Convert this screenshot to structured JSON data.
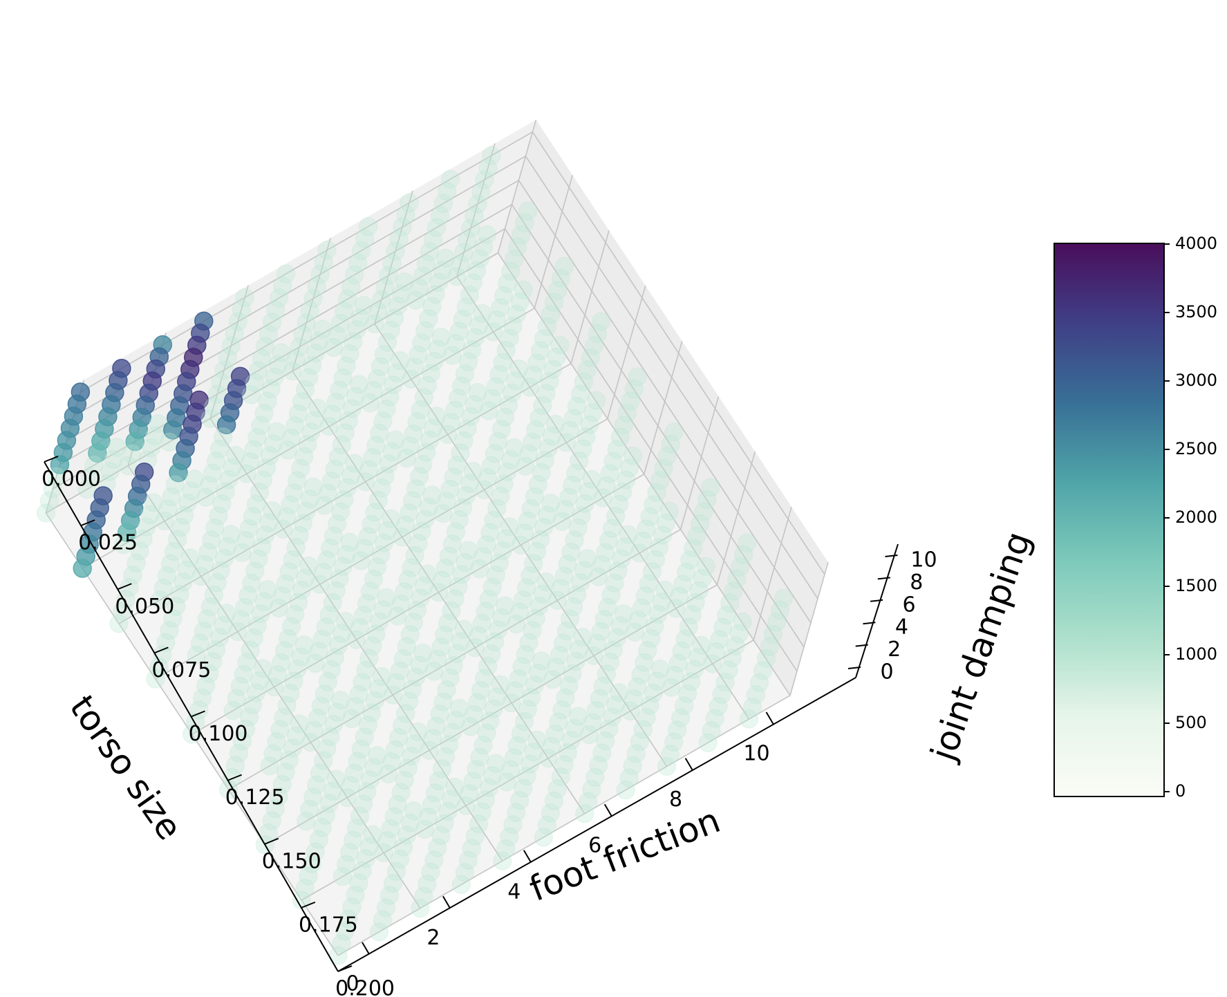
{
  "chart_data": {
    "type": "scatter",
    "projection": "3d",
    "title": "",
    "axes": {
      "x": {
        "label": "foot friction",
        "range": [
          0,
          11
        ],
        "ticks": [
          0,
          2,
          4,
          6,
          8,
          10
        ],
        "tick_labels": [
          "0",
          "2",
          "4",
          "6",
          "8",
          "10"
        ]
      },
      "y": {
        "label": "torso size",
        "range": [
          0,
          0.2
        ],
        "ticks": [
          0,
          0.025,
          0.05,
          0.075,
          0.1,
          0.125,
          0.15,
          0.175,
          0.2
        ],
        "tick_labels": [
          "0.000",
          "0.025",
          "0.050",
          "0.075",
          "0.100",
          "0.125",
          "0.150",
          "0.175",
          "0.200"
        ]
      },
      "z": {
        "label": "joint damping",
        "range": [
          0,
          11
        ],
        "ticks": [
          0,
          2,
          4,
          6,
          8,
          10
        ],
        "tick_labels": [
          "0",
          "2",
          "4",
          "6",
          "8",
          "10"
        ]
      }
    },
    "grid": true,
    "colorbar": {
      "colormap": "viridis-like (white → teal → dark purple)",
      "range": [
        0,
        4000
      ],
      "ticks": [
        0,
        500,
        1000,
        1500,
        2000,
        2500,
        3000,
        3500,
        4000
      ],
      "tick_labels": [
        "0",
        "500",
        "1000",
        "1500",
        "2000",
        "2500",
        "3000",
        "3500",
        "4000"
      ],
      "stops": [
        "#fafcf6",
        "#e7f5ea",
        "#ade0cc",
        "#7cc9ba",
        "#4fa4a8",
        "#386f96",
        "#3f3f86",
        "#4a0e5c"
      ]
    },
    "grid_sampling": {
      "foot_friction": [
        0,
        1,
        2,
        3,
        4,
        5,
        6,
        7,
        8,
        9,
        10
      ],
      "torso_size": [
        0,
        0.025,
        0.05,
        0.075,
        0.1,
        0.125,
        0.15,
        0.175,
        0.2
      ],
      "joint_damping": [
        0,
        1,
        2,
        3,
        4,
        5,
        6,
        7,
        8,
        9,
        10
      ],
      "background_reward": 1000
    },
    "high_reward_points": [
      {
        "foot_friction": 0,
        "torso_size": 0,
        "joint_damping": [
          4,
          5,
          6,
          7,
          8,
          9,
          10
        ],
        "reward": [
          2300,
          2400,
          2500,
          2600,
          2700,
          2800,
          2900
        ]
      },
      {
        "foot_friction": 0,
        "torso_size": 0.025,
        "joint_damping": [
          0,
          1,
          2,
          3,
          4,
          5,
          6
        ],
        "reward": [
          2200,
          2400,
          2600,
          2800,
          3000,
          3100,
          3200
        ]
      },
      {
        "foot_friction": 1,
        "torso_size": 0,
        "joint_damping": [
          3,
          4,
          5,
          6,
          7,
          8,
          9,
          10
        ],
        "reward": [
          2000,
          2200,
          2400,
          2600,
          2800,
          3000,
          3200,
          3300
        ]
      },
      {
        "foot_friction": 1,
        "torso_size": 0.025,
        "joint_damping": [
          1,
          2,
          3,
          4,
          5,
          6
        ],
        "reward": [
          2000,
          2300,
          2600,
          2900,
          3100,
          3300
        ]
      },
      {
        "foot_friction": 2,
        "torso_size": 0,
        "joint_damping": [
          2,
          3,
          4,
          5,
          6,
          7,
          8,
          9,
          10
        ],
        "reward": [
          2100,
          2400,
          2700,
          3000,
          3300,
          3500,
          3300,
          3000,
          2600
        ]
      },
      {
        "foot_friction": 2,
        "torso_size": 0.025,
        "joint_damping": [
          4,
          5,
          6,
          7,
          8,
          9,
          10
        ],
        "reward": [
          2400,
          2700,
          3000,
          3200,
          3400,
          3500,
          3600
        ]
      },
      {
        "foot_friction": 3,
        "torso_size": 0,
        "joint_damping": [
          1,
          2,
          3,
          4,
          5,
          6,
          7,
          8,
          9,
          10
        ],
        "reward": [
          2600,
          2800,
          3000,
          3200,
          3400,
          3600,
          3700,
          3500,
          3300,
          3000
        ]
      },
      {
        "foot_friction": 3,
        "torso_size": 0.025,
        "joint_damping": [
          6,
          7,
          8,
          9,
          10
        ],
        "reward": [
          2800,
          3000,
          3200,
          3300,
          3400
        ]
      }
    ]
  }
}
